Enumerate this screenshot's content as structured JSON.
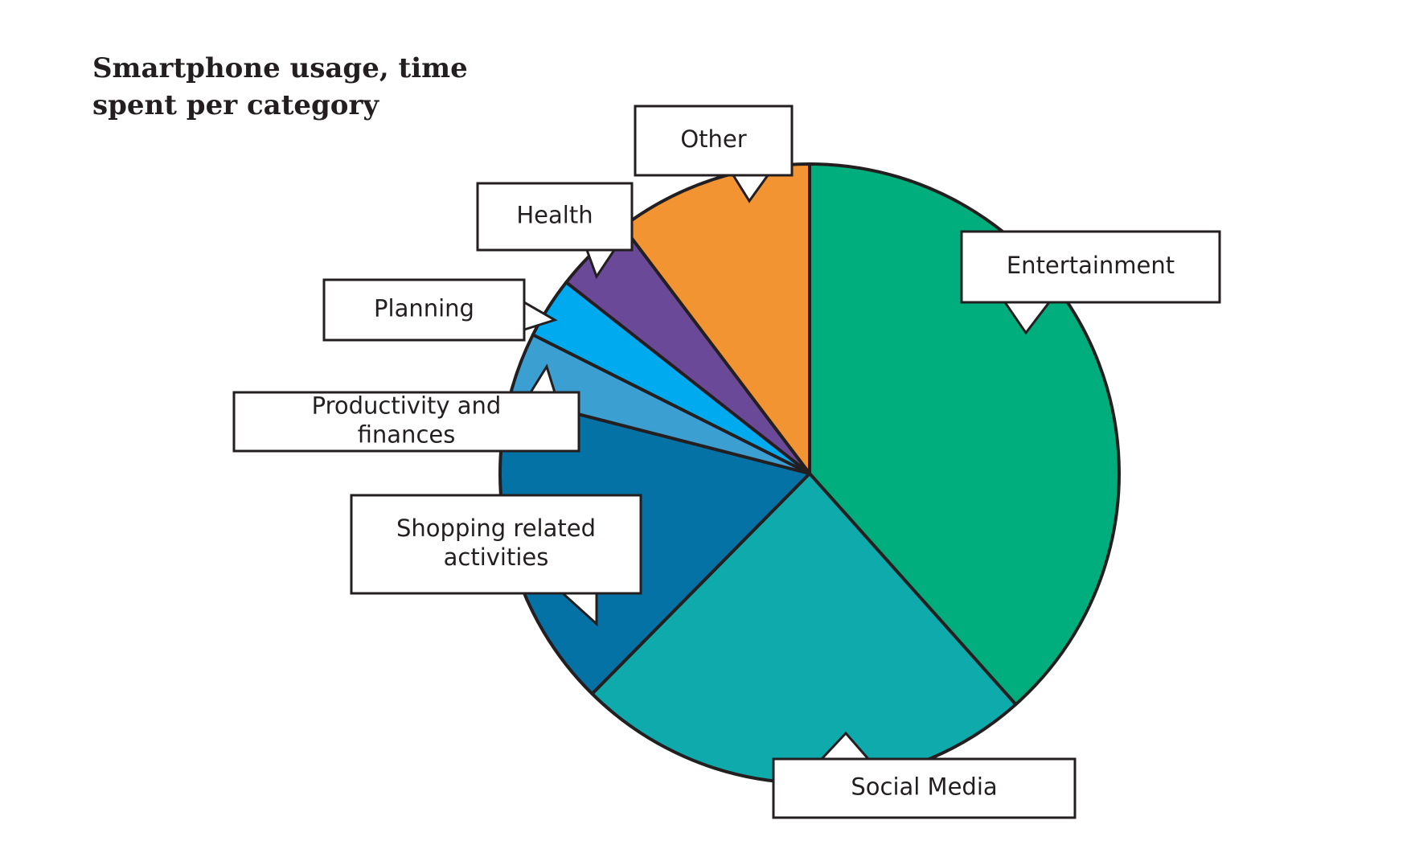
{
  "chart_data": {
    "type": "pie",
    "title": "Smartphone usage, time spent per category",
    "categories": [
      "Entertainment",
      "Social Media",
      "Shopping related activities",
      "Productivity and finances",
      "Planning",
      "Health",
      "Other"
    ],
    "values": [
      38.4,
      24,
      16.6,
      3.4,
      3.2,
      4.1,
      10.3
    ],
    "colors": [
      "#00ad7c",
      "#0faaac",
      "#0572a6",
      "#3b9fd1",
      "#00aaee",
      "#6a4a98",
      "#f39433"
    ]
  }
}
